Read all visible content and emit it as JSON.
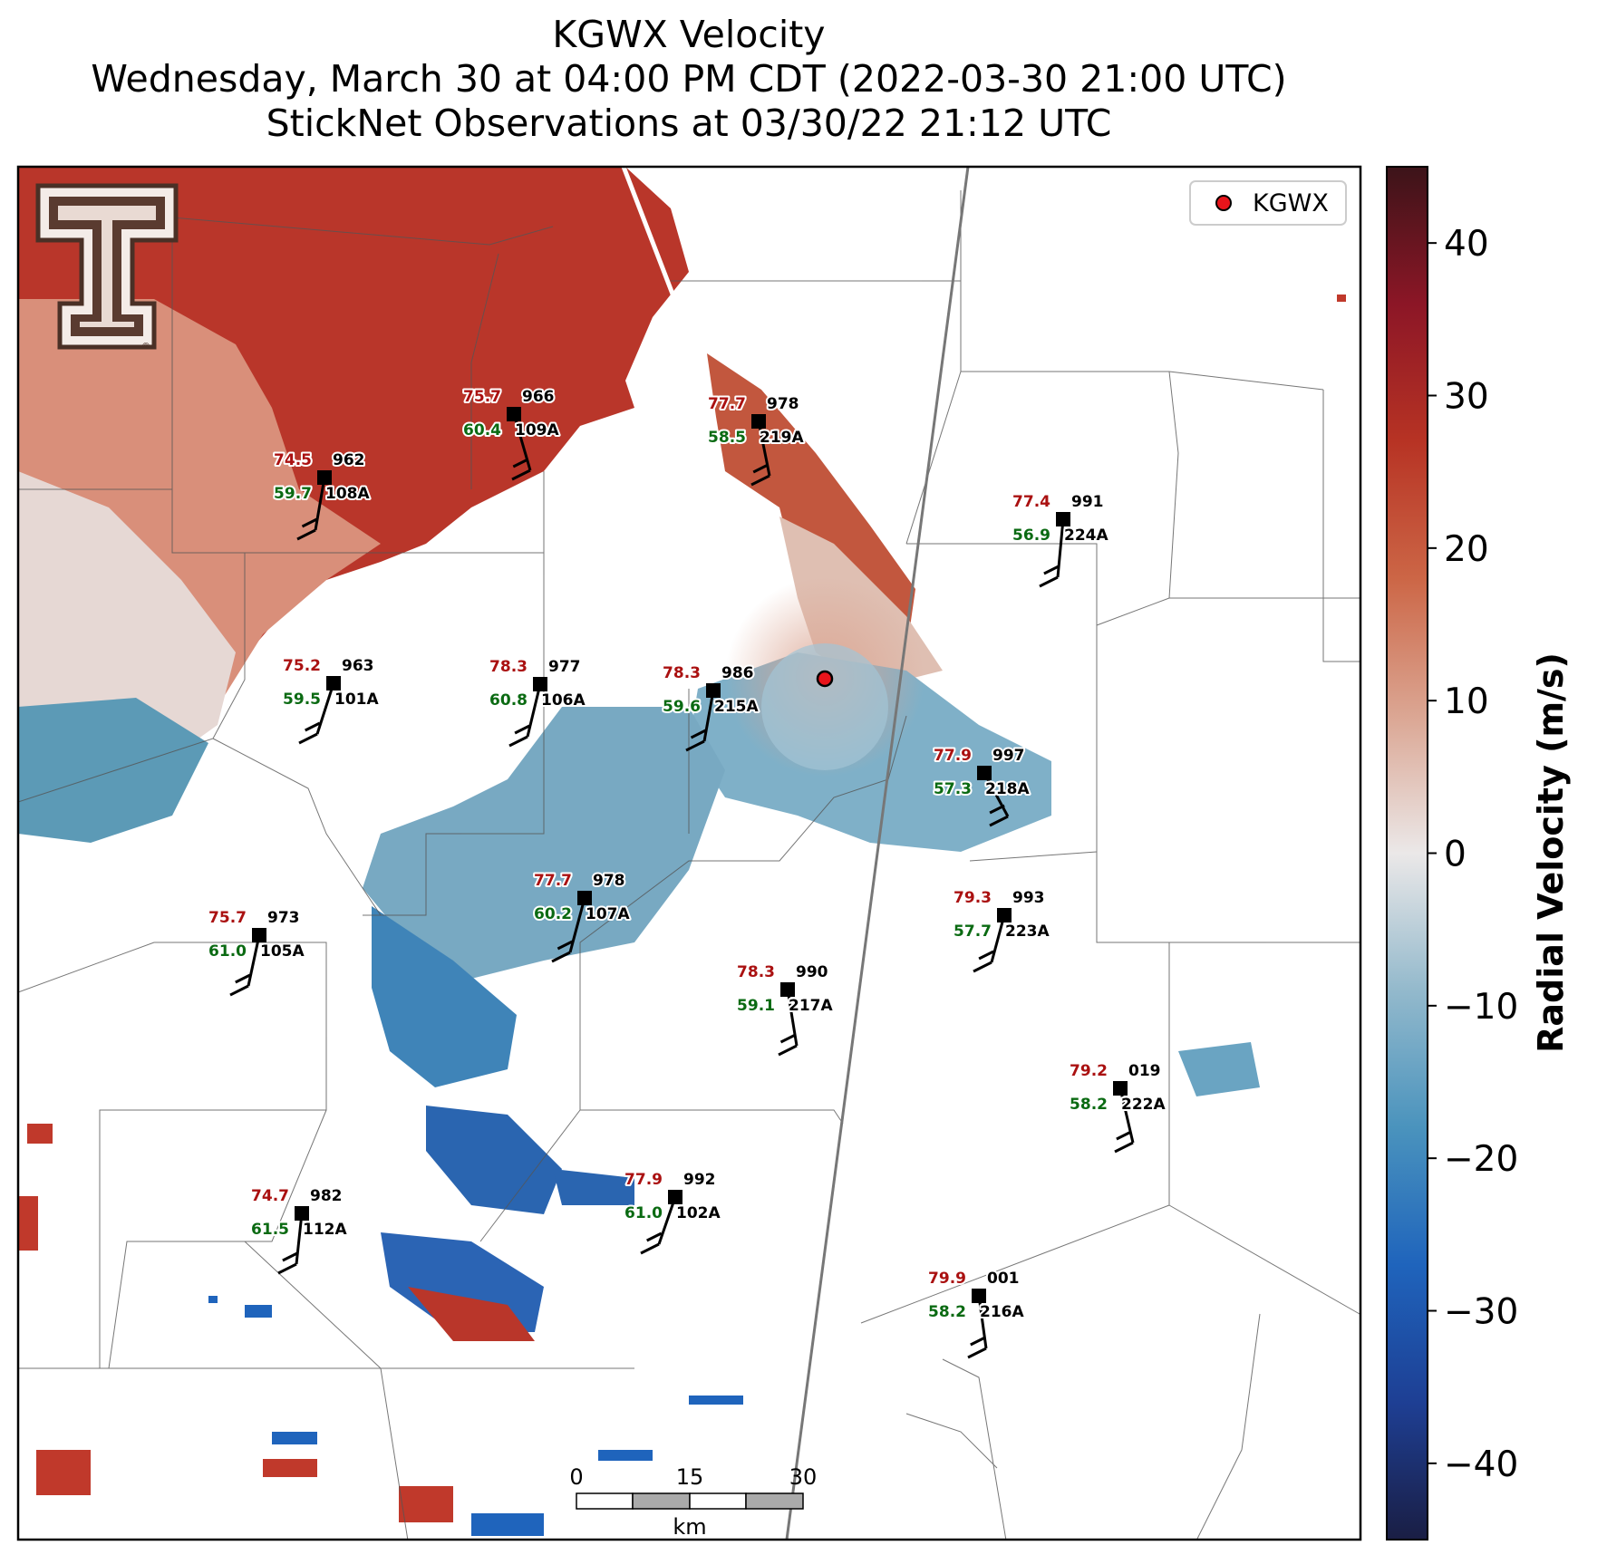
{
  "title": {
    "line1": "KGWX Velocity",
    "line2": "Wednesday, March 30 at 04:00 PM CDT (2022-03-30 21:00 UTC)",
    "line3": "StickNet Observations at 03/30/22 21:12 UTC"
  },
  "legend": {
    "label": "KGWX",
    "marker_color": "#e8141b"
  },
  "colorbar": {
    "label": "Radial Velocity (m/s)",
    "vmin": -45,
    "vmax": 45,
    "ticks": [
      "40",
      "30",
      "20",
      "10",
      "0",
      "−10",
      "−20",
      "−30",
      "−40"
    ],
    "tick_values": [
      40,
      30,
      20,
      10,
      0,
      -10,
      -20,
      -30,
      -40
    ],
    "colors": [
      "#1a1e44",
      "#1e3f94",
      "#1f64bc",
      "#4a93bd",
      "#93b9cc",
      "#ebe8e8",
      "#dba693",
      "#cc6646",
      "#b73324",
      "#8c1626",
      "#3c1419"
    ]
  },
  "scalebar": {
    "ticks": [
      "0",
      "15",
      "30"
    ],
    "unit": "km"
  },
  "logo": {
    "name": "Texas Tech Double T",
    "glyph": "T"
  },
  "stations": [
    {
      "id": "109A",
      "temp": "75.7",
      "dew": "60.4",
      "pres": "966"
    },
    {
      "id": "219A",
      "temp": "77.7",
      "dew": "58.5",
      "pres": "978"
    },
    {
      "id": "108A",
      "temp": "74.5",
      "dew": "59.7",
      "pres": "962"
    },
    {
      "id": "224A",
      "temp": "77.4",
      "dew": "56.9",
      "pres": "991"
    },
    {
      "id": "101A",
      "temp": "75.2",
      "dew": "59.5",
      "pres": "963"
    },
    {
      "id": "106A",
      "temp": "78.3",
      "dew": "60.8",
      "pres": "977"
    },
    {
      "id": "215A",
      "temp": "78.3",
      "dew": "59.6",
      "pres": "986"
    },
    {
      "id": "218A",
      "temp": "77.9",
      "dew": "57.3",
      "pres": "997"
    },
    {
      "id": "107A",
      "temp": "77.7",
      "dew": "60.2",
      "pres": "978"
    },
    {
      "id": "223A",
      "temp": "79.3",
      "dew": "57.7",
      "pres": "993"
    },
    {
      "id": "105A",
      "temp": "75.7",
      "dew": "61.0",
      "pres": "973"
    },
    {
      "id": "217A",
      "temp": "78.3",
      "dew": "59.1",
      "pres": "990"
    },
    {
      "id": "222A",
      "temp": "79.2",
      "dew": "58.2",
      "pres": "019"
    },
    {
      "id": "112A",
      "temp": "74.7",
      "dew": "61.5",
      "pres": "982"
    },
    {
      "id": "102A",
      "temp": "77.9",
      "dew": "61.0",
      "pres": "992"
    },
    {
      "id": "216A",
      "temp": "79.9",
      "dew": "58.2",
      "pres": "001"
    }
  ]
}
